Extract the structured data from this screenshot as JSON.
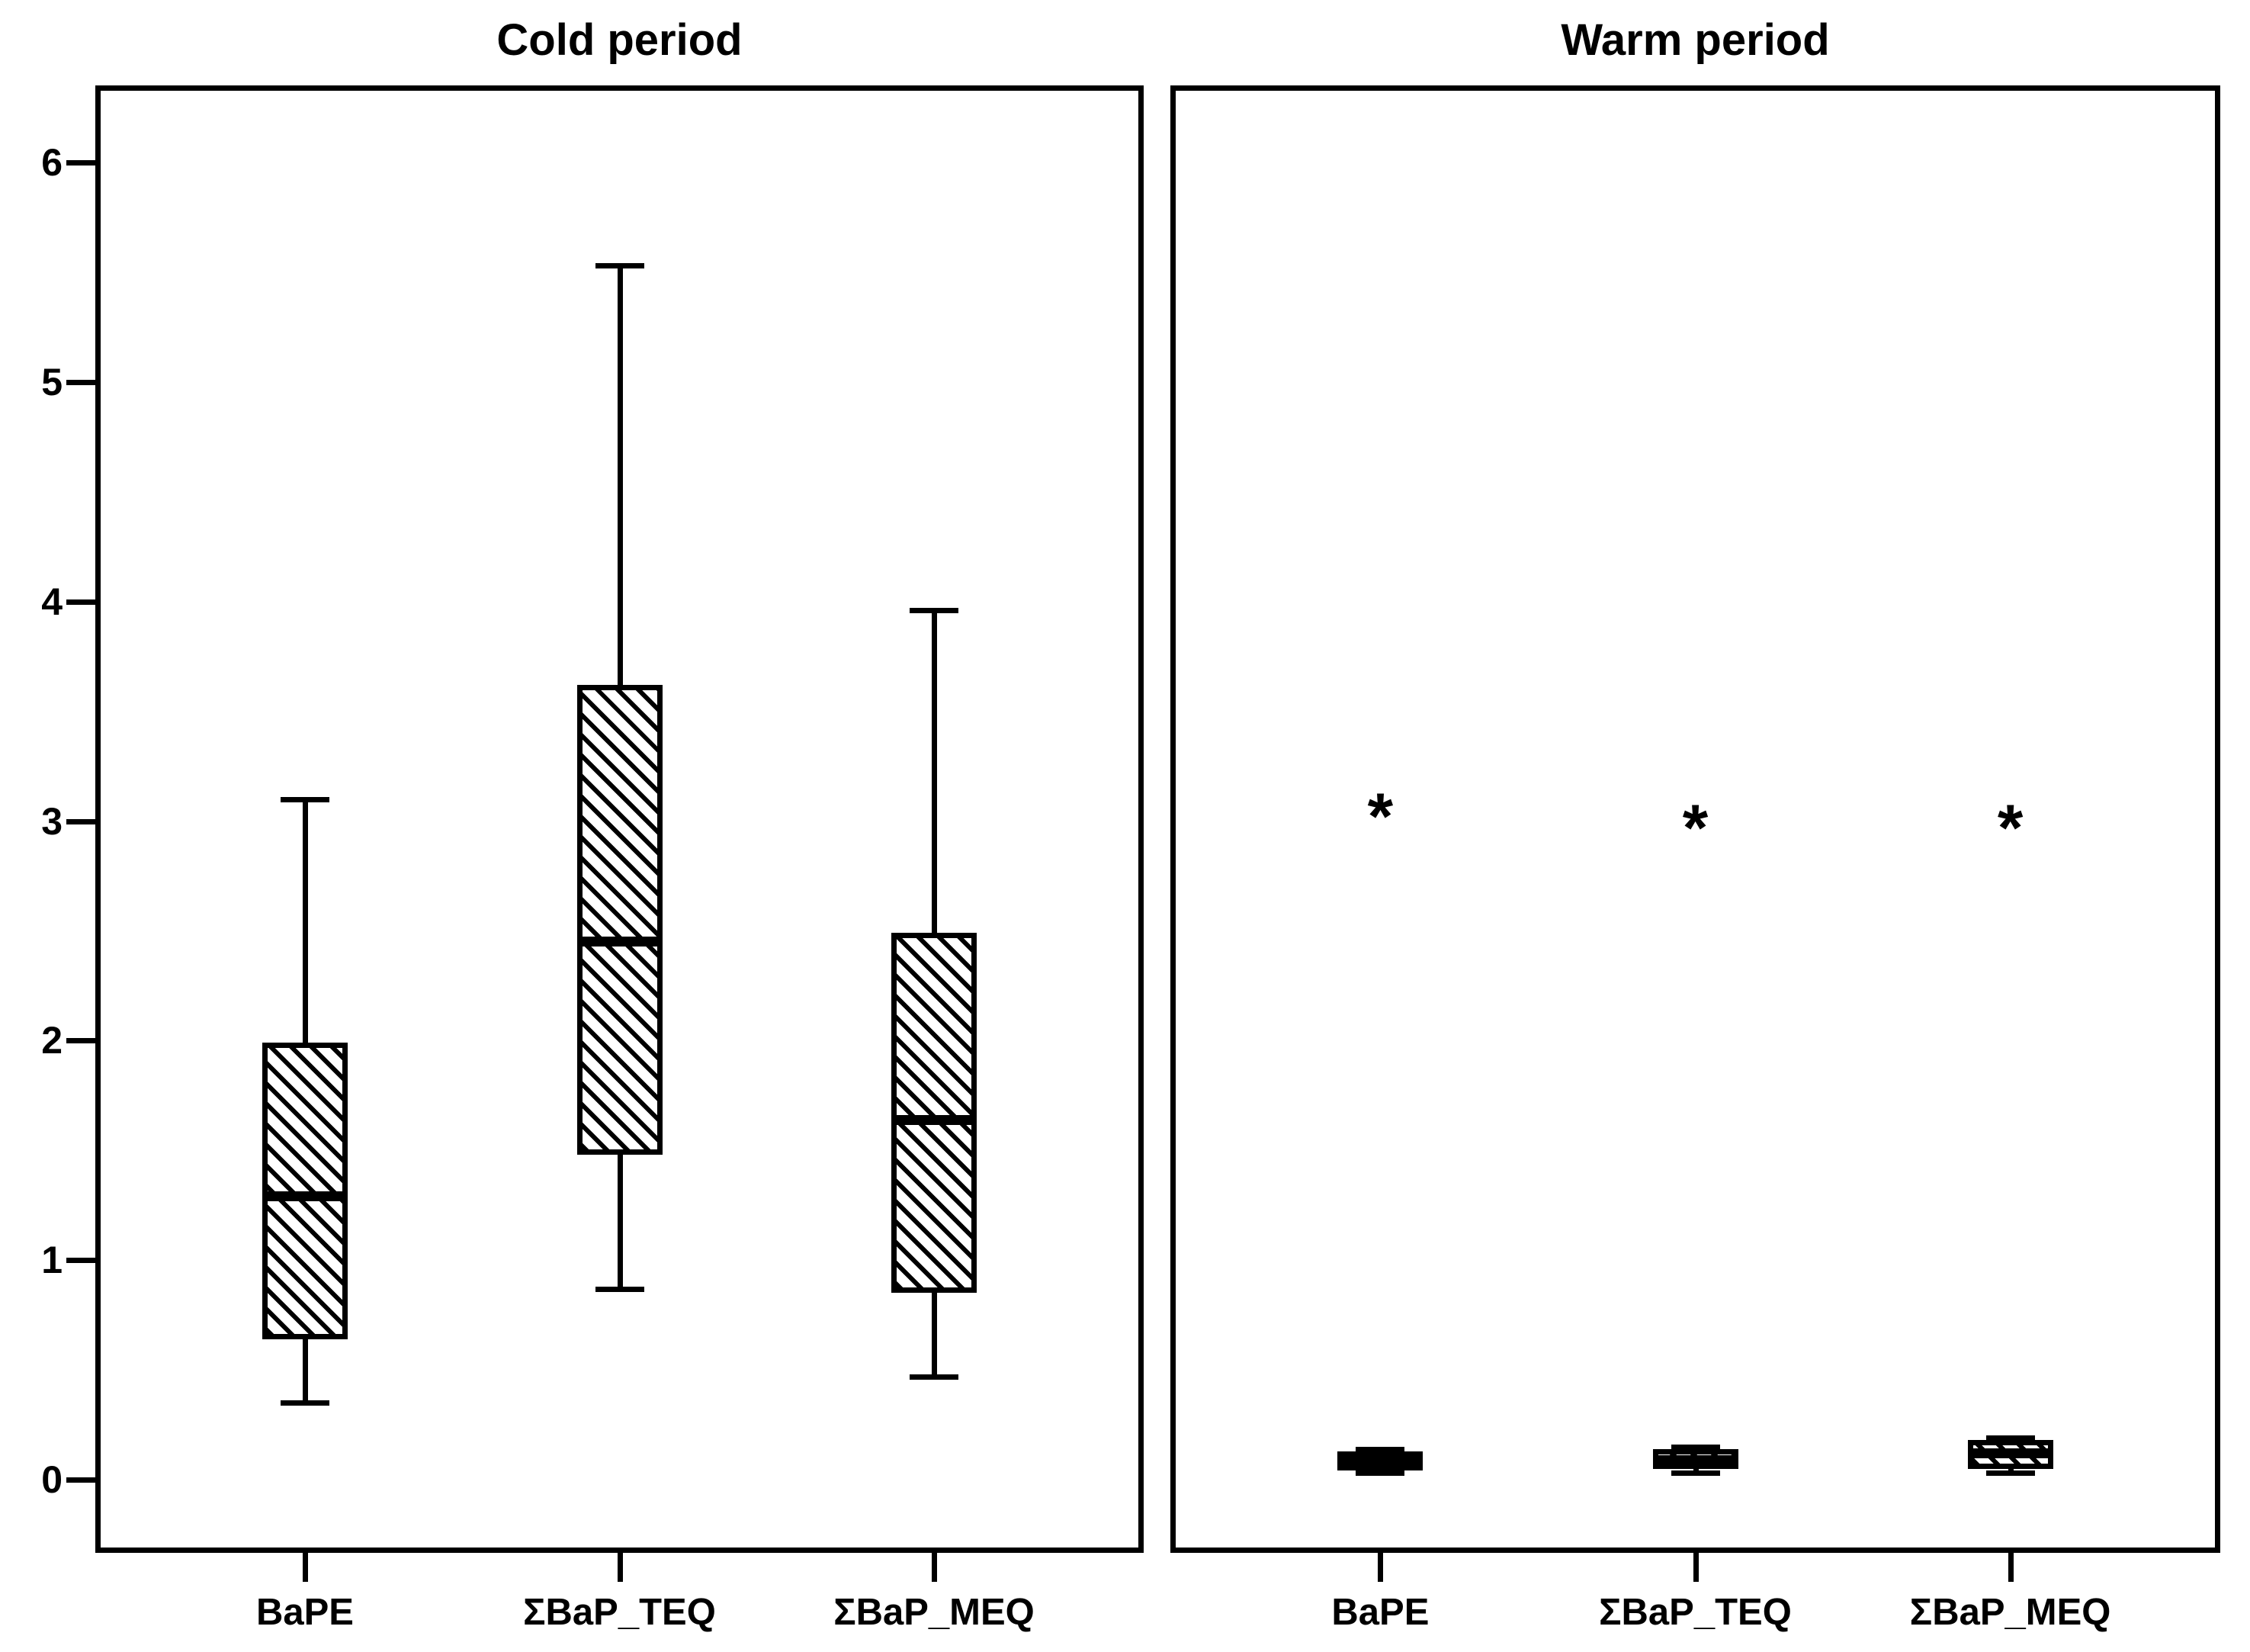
{
  "figure": {
    "background": "#ffffff",
    "line_color": "#000000",
    "outlier_marker": "*",
    "box_fill_style": "diagonal-hatch"
  },
  "chart_data": [
    {
      "type": "box",
      "title": "Cold period",
      "categories": [
        "BaPE",
        "ΣBaP_TEQ",
        "ΣBaP_MEQ"
      ],
      "ylabel": "",
      "xlabel": "",
      "yticks": [
        0,
        1,
        2,
        3,
        4,
        5,
        6
      ],
      "ylim": [
        -0.34,
        6.35
      ],
      "grid": false,
      "legend": "none",
      "boxes": [
        {
          "category": "BaPE",
          "min": 0.35,
          "q1": 0.64,
          "median": 1.29,
          "q3": 1.99,
          "max": 3.1,
          "outliers": []
        },
        {
          "category": "ΣBaP_TEQ",
          "min": 0.87,
          "q1": 1.48,
          "median": 2.45,
          "q3": 3.62,
          "max": 5.53,
          "outliers": []
        },
        {
          "category": "ΣBaP_MEQ",
          "min": 0.47,
          "q1": 0.85,
          "median": 1.64,
          "q3": 2.49,
          "max": 3.96,
          "outliers": []
        }
      ]
    },
    {
      "type": "box",
      "title": "Warm period",
      "categories": [
        "BaPE",
        "ΣBaP_TEQ",
        "ΣBaP_MEQ"
      ],
      "ylabel": "",
      "xlabel": "",
      "yticks": [
        0,
        1,
        2,
        3,
        4,
        5,
        6
      ],
      "ylim": [
        -0.34,
        6.35
      ],
      "grid": false,
      "legend": "none",
      "boxes": [
        {
          "category": "BaPE",
          "min": 0.03,
          "q1": 0.04,
          "median": 0.08,
          "q3": 0.13,
          "max": 0.14,
          "outliers": [
            3.07
          ]
        },
        {
          "category": "ΣBaP_TEQ",
          "min": 0.03,
          "q1": 0.05,
          "median": 0.09,
          "q3": 0.14,
          "max": 0.15,
          "outliers": [
            3.02
          ]
        },
        {
          "category": "ΣBaP_MEQ",
          "min": 0.03,
          "q1": 0.05,
          "median": 0.12,
          "q3": 0.18,
          "max": 0.19,
          "outliers": [
            3.02
          ]
        }
      ]
    }
  ]
}
